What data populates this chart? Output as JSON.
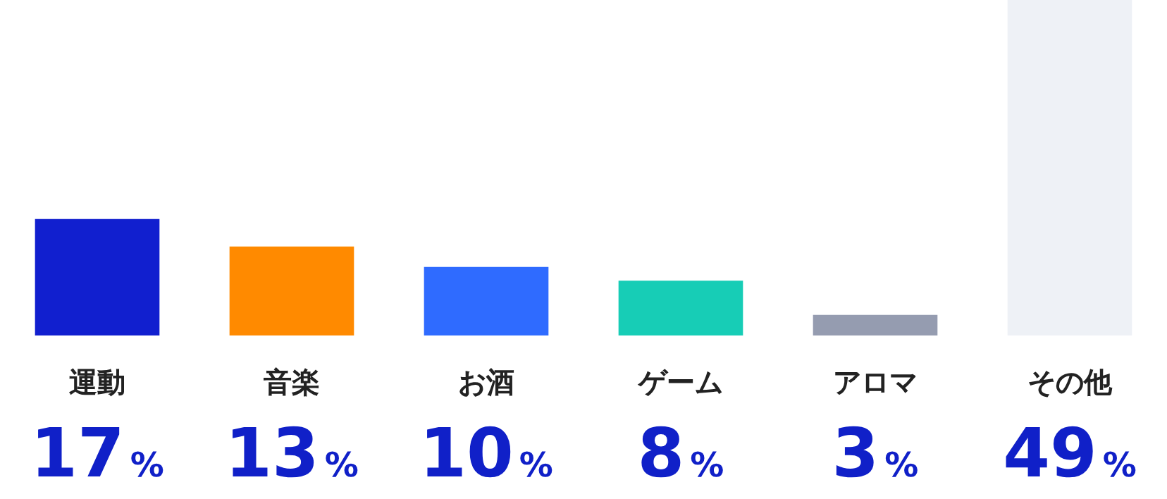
{
  "chart_data": {
    "type": "bar",
    "categories": [
      "運動",
      "音楽",
      "お酒",
      "ゲーム",
      "アロマ",
      "その他"
    ],
    "values": [
      17,
      13,
      10,
      8,
      3,
      49
    ],
    "colors": [
      "#111fcf",
      "#ff8a00",
      "#2f6bff",
      "#17cdb6",
      "#959cb0",
      "#eef1f6"
    ],
    "value_labels": [
      "17%",
      "13%",
      "10%",
      "8%",
      "3%",
      "49%"
    ]
  }
}
